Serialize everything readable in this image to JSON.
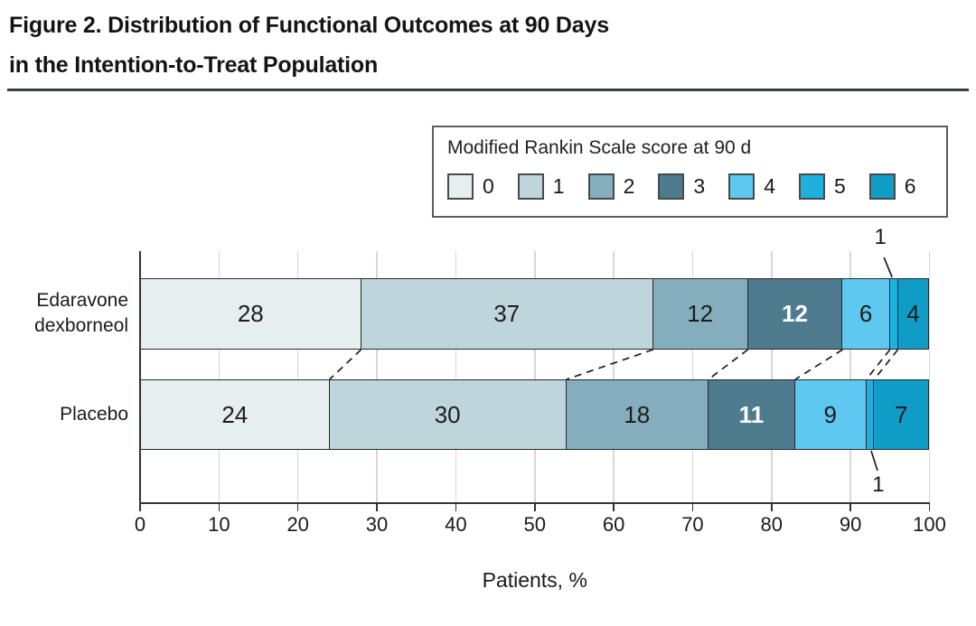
{
  "figure": {
    "title_line1": "Figure 2. Distribution of Functional Outcomes at 90 Days",
    "title_line2": "in the Intention-to-Treat Population"
  },
  "chart_data": {
    "type": "bar",
    "orientation": "horizontal",
    "stacked": true,
    "title": "Figure 2. Distribution of Functional Outcomes at 90 Days in the Intention-to-Treat Population",
    "legend_title": "Modified Rankin Scale score at 90 d",
    "legend_position": "top-right",
    "categories": [
      "Edaravone dexborneol",
      "Placebo"
    ],
    "category_display_lines": [
      [
        "Edaravone",
        "dexborneol"
      ],
      [
        "Placebo"
      ]
    ],
    "series": [
      {
        "name": "0",
        "color": "#e6eef0",
        "values": [
          28,
          24
        ]
      },
      {
        "name": "1",
        "color": "#bfd5dc",
        "values": [
          37,
          30
        ]
      },
      {
        "name": "2",
        "color": "#84aebe",
        "values": [
          12,
          18
        ]
      },
      {
        "name": "3",
        "color": "#4e7c8e",
        "values": [
          12,
          11
        ],
        "label_color": "#ffffff"
      },
      {
        "name": "4",
        "color": "#5fc8f0",
        "values": [
          6,
          9
        ]
      },
      {
        "name": "5",
        "color": "#1fb1de",
        "values": [
          1,
          1
        ],
        "callout": true
      },
      {
        "name": "6",
        "color": "#0f9dc8",
        "values": [
          4,
          7
        ]
      }
    ],
    "xlabel": "Patients, %",
    "xlim": [
      0,
      100
    ],
    "xticks": [
      0,
      10,
      20,
      30,
      40,
      50,
      60,
      70,
      80,
      90,
      100
    ],
    "grid": true,
    "annotations": {
      "connectors": "dashed lines join cumulative series boundaries of the two bars",
      "callout_value": "1"
    }
  }
}
